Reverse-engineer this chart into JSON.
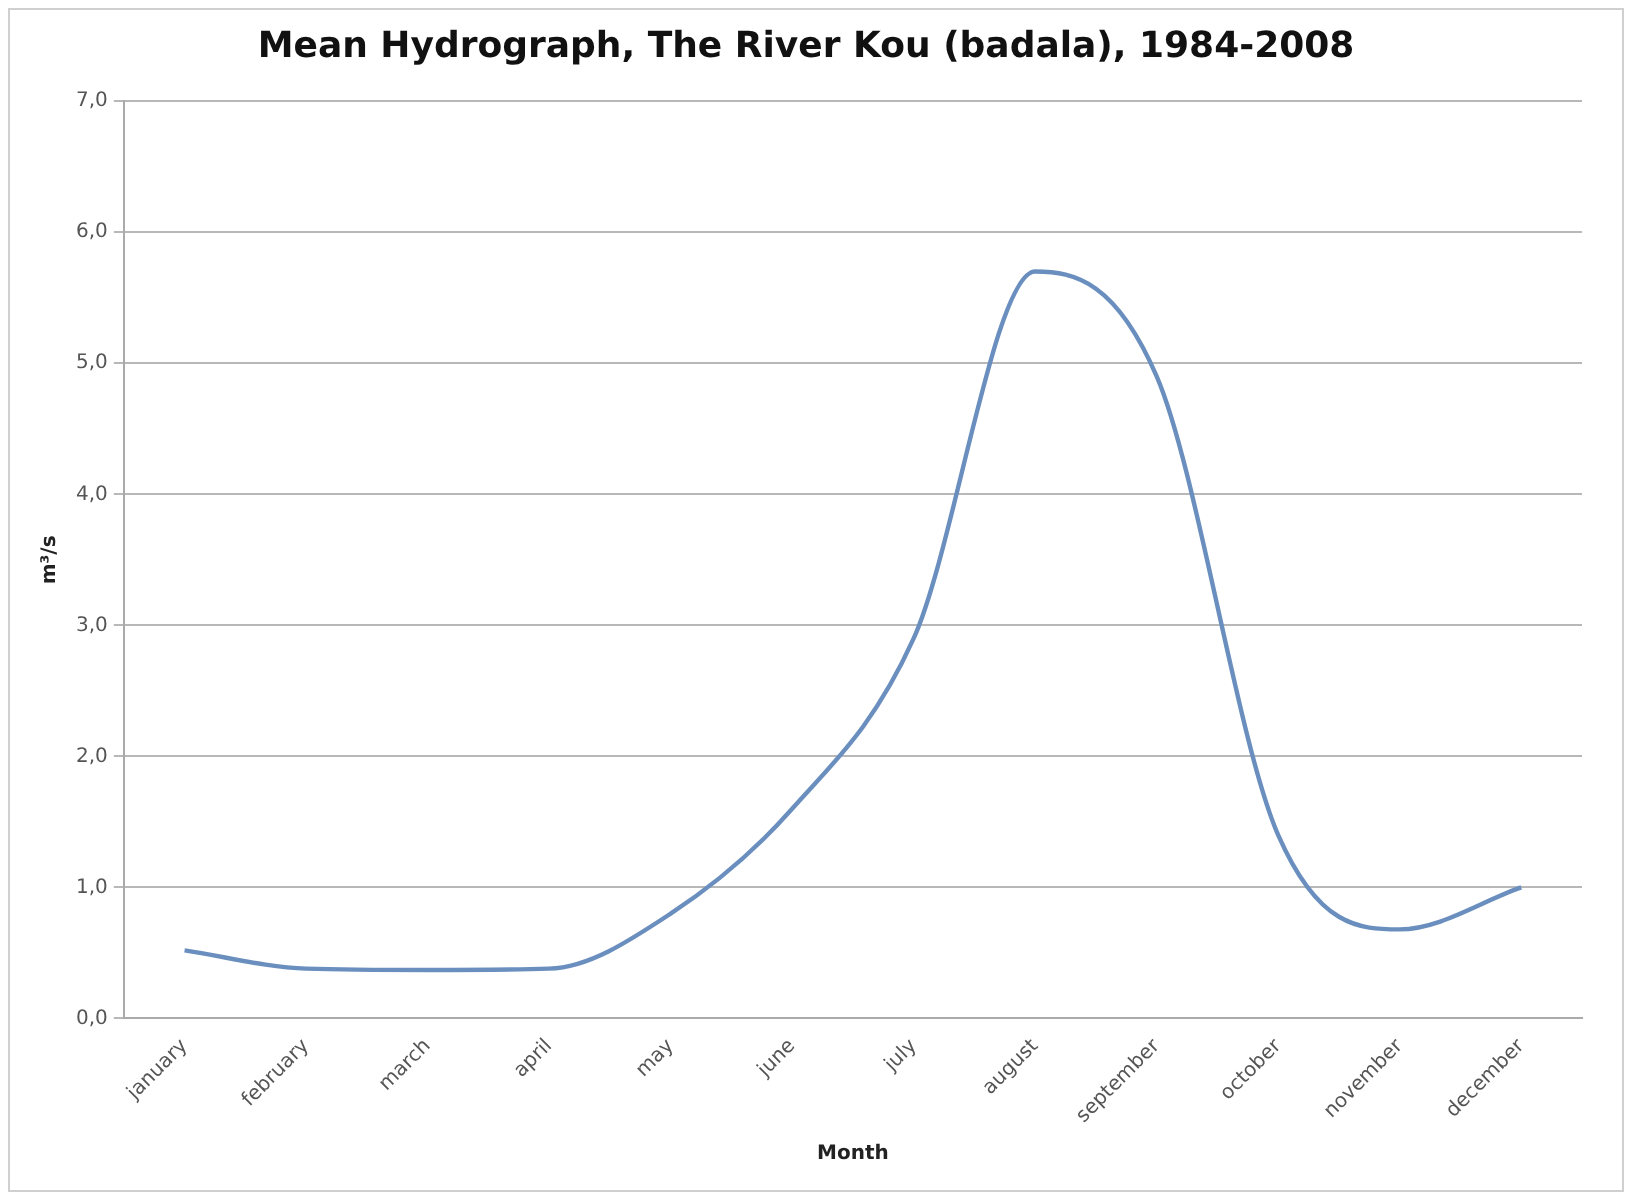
{
  "chart_data": {
    "type": "line",
    "title": "Mean Hydrograph, The River Kou (badala), 1984-2008",
    "xlabel": "Month",
    "ylabel": "m³/s",
    "categories": [
      "january",
      "february",
      "march",
      "april",
      "may",
      "june",
      "july",
      "august",
      "september",
      "october",
      "november",
      "december"
    ],
    "series": [
      {
        "color": "#6a8fbf",
        "values": [
          0.52,
          0.38,
          0.37,
          0.38,
          0.8,
          1.6,
          2.9,
          5.7,
          4.9,
          1.4,
          0.68,
          1.0
        ]
      }
    ],
    "ylim": [
      0,
      7
    ],
    "yticks": [
      {
        "value": 0,
        "label": "0,0"
      },
      {
        "value": 1,
        "label": "1,0"
      },
      {
        "value": 2,
        "label": "2,0"
      },
      {
        "value": 3,
        "label": "3,0"
      },
      {
        "value": 4,
        "label": "4,0"
      },
      {
        "value": 5,
        "label": "5,0"
      },
      {
        "value": 6,
        "label": "6,0"
      },
      {
        "value": 7,
        "label": "7,0"
      }
    ],
    "grid": "y",
    "legend": false,
    "marker": "none",
    "line_style": "solid"
  }
}
